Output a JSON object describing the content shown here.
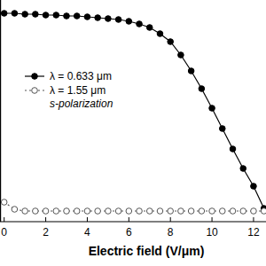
{
  "chart_data": {
    "type": "line",
    "x_label": "Electric field (V/μm)",
    "annotation": "s-polarization",
    "x": [
      0,
      0.5,
      1,
      1.5,
      2,
      2.5,
      3,
      3.5,
      4,
      4.5,
      5,
      5.5,
      6,
      6.5,
      7,
      7.5,
      8,
      8.5,
      9,
      9.5,
      10,
      10.5,
      11,
      11.5,
      12,
      12.5
    ],
    "series": [
      {
        "name": "λ = 0.633 μm",
        "color": "#000000",
        "marker": "filled-circle",
        "line_style": "solid",
        "values": [
          0.94,
          0.94,
          0.936,
          0.936,
          0.932,
          0.932,
          0.928,
          0.928,
          0.924,
          0.92,
          0.916,
          0.912,
          0.904,
          0.892,
          0.876,
          0.848,
          0.812,
          0.752,
          0.68,
          0.6,
          0.512,
          0.42,
          0.328,
          0.24,
          0.16,
          0.06
        ]
      },
      {
        "name": "λ = 1.55 μm",
        "color": "#555555",
        "marker": "open-circle",
        "line_style": "dotted",
        "values": [
          0.088,
          0.056,
          0.048,
          0.048,
          0.048,
          0.048,
          0.048,
          0.048,
          0.048,
          0.048,
          0.048,
          0.048,
          0.048,
          0.048,
          0.048,
          0.048,
          0.048,
          0.048,
          0.048,
          0.048,
          0.048,
          0.048,
          0.048,
          0.048,
          0.048,
          0.048
        ]
      }
    ],
    "xlim": [
      -0.2,
      12.6
    ],
    "xticks": [
      0,
      2,
      4,
      6,
      8,
      10,
      12
    ],
    "ylim": [
      0,
      1
    ],
    "yticks": [],
    "tick_labels": "x",
    "legend": "left",
    "grid": false
  }
}
